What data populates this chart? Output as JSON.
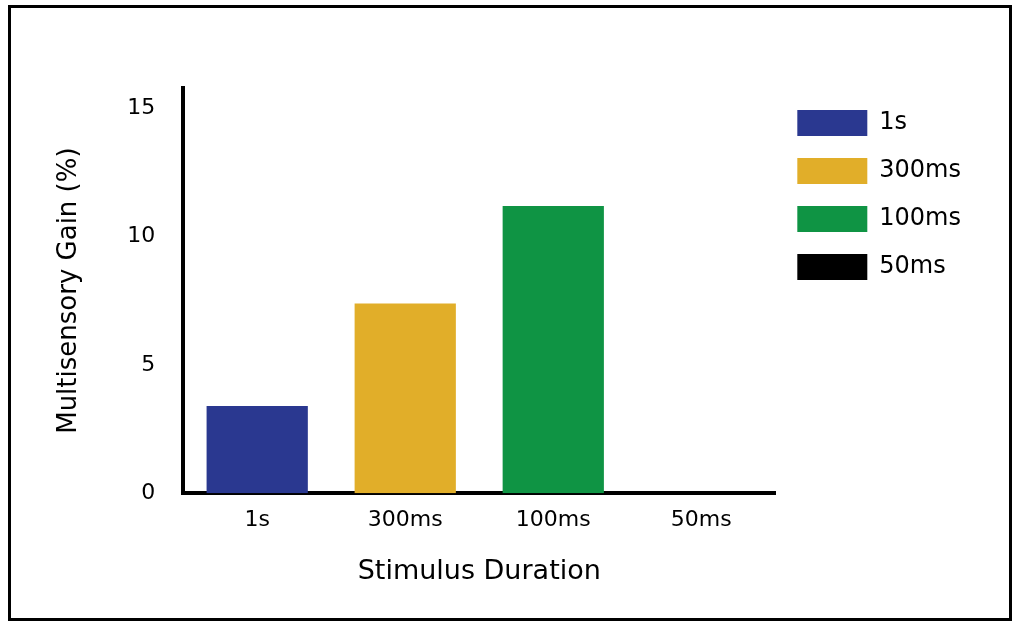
{
  "chart_data": {
    "type": "bar",
    "xlabel": "Stimulus Duration",
    "ylabel": "Multisensory Gain (%)",
    "categories": [
      "1s",
      "300ms",
      "100ms",
      "50ms"
    ],
    "series": [
      {
        "name": "1s",
        "color": "#2a3890",
        "values": [
          3.4,
          null,
          null,
          null
        ]
      },
      {
        "name": "300ms",
        "color": "#e1ae29",
        "values": [
          null,
          7.4,
          null,
          null
        ]
      },
      {
        "name": "100ms",
        "color": "#0f9444",
        "values": [
          null,
          null,
          11.2,
          null
        ]
      },
      {
        "name": "50ms",
        "color": "#000000",
        "values": [
          null,
          null,
          null,
          0
        ]
      }
    ],
    "ylim": [
      0,
      15.8
    ],
    "yticks": [
      0,
      5,
      10,
      15
    ],
    "grid": false,
    "legend": "top right"
  }
}
